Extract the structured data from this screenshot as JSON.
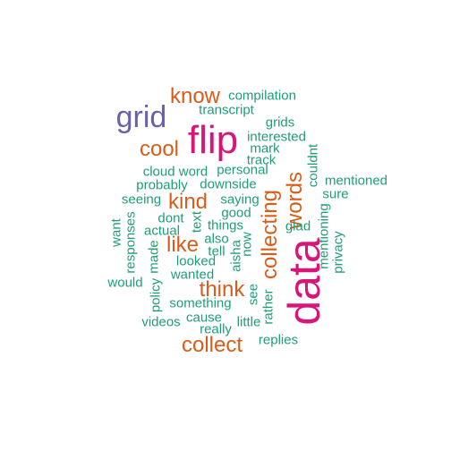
{
  "colors": {
    "large": "#D9157A",
    "purple": "#6A5FB0",
    "orange": "#D95C1A",
    "teal": "#1E9E78"
  },
  "cloud": {
    "words": [
      {
        "text": "data",
        "weight": 5,
        "color": "large"
      },
      {
        "text": "flip",
        "weight": 5,
        "color": "large"
      },
      {
        "text": "grid",
        "weight": 4,
        "color": "purple"
      },
      {
        "text": "words",
        "weight": 3,
        "color": "orange"
      },
      {
        "text": "collecting",
        "weight": 3,
        "color": "orange"
      },
      {
        "text": "know",
        "weight": 3,
        "color": "orange"
      },
      {
        "text": "cool",
        "weight": 3,
        "color": "orange"
      },
      {
        "text": "kind",
        "weight": 3,
        "color": "orange"
      },
      {
        "text": "like",
        "weight": 3,
        "color": "orange"
      },
      {
        "text": "think",
        "weight": 3,
        "color": "orange"
      },
      {
        "text": "collect",
        "weight": 3,
        "color": "orange"
      },
      {
        "text": "compilation",
        "weight": 1,
        "color": "teal"
      },
      {
        "text": "transcript",
        "weight": 1,
        "color": "teal"
      },
      {
        "text": "grids",
        "weight": 1,
        "color": "teal"
      },
      {
        "text": "interested",
        "weight": 1,
        "color": "teal"
      },
      {
        "text": "mark",
        "weight": 1,
        "color": "teal"
      },
      {
        "text": "track",
        "weight": 1,
        "color": "teal"
      },
      {
        "text": "couldnt",
        "weight": 1,
        "color": "teal"
      },
      {
        "text": "mentioned",
        "weight": 1,
        "color": "teal"
      },
      {
        "text": "sure",
        "weight": 1,
        "color": "teal"
      },
      {
        "text": "cloud word",
        "weight": 1,
        "color": "teal"
      },
      {
        "text": "personal",
        "weight": 1,
        "color": "teal"
      },
      {
        "text": "probably",
        "weight": 1,
        "color": "teal"
      },
      {
        "text": "downside",
        "weight": 1,
        "color": "teal"
      },
      {
        "text": "seeing",
        "weight": 1,
        "color": "teal"
      },
      {
        "text": "saying",
        "weight": 1,
        "color": "teal"
      },
      {
        "text": "good",
        "weight": 1,
        "color": "teal"
      },
      {
        "text": "dont",
        "weight": 1,
        "color": "teal"
      },
      {
        "text": "text",
        "weight": 1,
        "color": "teal"
      },
      {
        "text": "things",
        "weight": 1,
        "color": "teal"
      },
      {
        "text": "glad",
        "weight": 1,
        "color": "teal"
      },
      {
        "text": "mentioning",
        "weight": 1,
        "color": "teal"
      },
      {
        "text": "privacy",
        "weight": 1,
        "color": "teal"
      },
      {
        "text": "want",
        "weight": 1,
        "color": "teal"
      },
      {
        "text": "responses",
        "weight": 1,
        "color": "teal"
      },
      {
        "text": "actual",
        "weight": 1,
        "color": "teal"
      },
      {
        "text": "also",
        "weight": 1,
        "color": "teal"
      },
      {
        "text": "tell",
        "weight": 1,
        "color": "teal"
      },
      {
        "text": "aisha",
        "weight": 1,
        "color": "teal"
      },
      {
        "text": "now",
        "weight": 1,
        "color": "teal"
      },
      {
        "text": "made",
        "weight": 1,
        "color": "teal"
      },
      {
        "text": "looked",
        "weight": 1,
        "color": "teal"
      },
      {
        "text": "wanted",
        "weight": 1,
        "color": "teal"
      },
      {
        "text": "would",
        "weight": 1,
        "color": "teal"
      },
      {
        "text": "policy",
        "weight": 1,
        "color": "teal"
      },
      {
        "text": "something",
        "weight": 1,
        "color": "teal"
      },
      {
        "text": "see",
        "weight": 1,
        "color": "teal"
      },
      {
        "text": "rather",
        "weight": 1,
        "color": "teal"
      },
      {
        "text": "cause",
        "weight": 1,
        "color": "teal"
      },
      {
        "text": "little",
        "weight": 1,
        "color": "teal"
      },
      {
        "text": "videos",
        "weight": 1,
        "color": "teal"
      },
      {
        "text": "really",
        "weight": 1,
        "color": "teal"
      },
      {
        "text": "replies",
        "weight": 1,
        "color": "teal"
      }
    ]
  }
}
